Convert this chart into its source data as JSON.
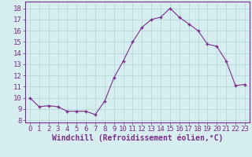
{
  "x": [
    0,
    1,
    2,
    3,
    4,
    5,
    6,
    7,
    8,
    9,
    10,
    11,
    12,
    13,
    14,
    15,
    16,
    17,
    18,
    19,
    20,
    21,
    22,
    23
  ],
  "y": [
    10.0,
    9.2,
    9.3,
    9.2,
    8.8,
    8.8,
    8.8,
    8.5,
    9.7,
    11.8,
    13.3,
    15.0,
    16.3,
    17.0,
    17.2,
    18.0,
    17.2,
    16.6,
    16.0,
    14.8,
    14.6,
    13.3,
    11.1,
    11.2
  ],
  "line_color": "#7b2d8b",
  "marker": "+",
  "marker_size": 3,
  "bg_color": "#d6eef0",
  "grid_color": "#b8d8da",
  "xlabel": "Windchill (Refroidissement éolien,°C)",
  "xlabel_fontsize": 7,
  "ylabel_values": [
    8,
    9,
    10,
    11,
    12,
    13,
    14,
    15,
    16,
    17,
    18
  ],
  "ylim": [
    7.8,
    18.6
  ],
  "xlim": [
    -0.5,
    23.5
  ],
  "tick_fontsize": 6.5
}
